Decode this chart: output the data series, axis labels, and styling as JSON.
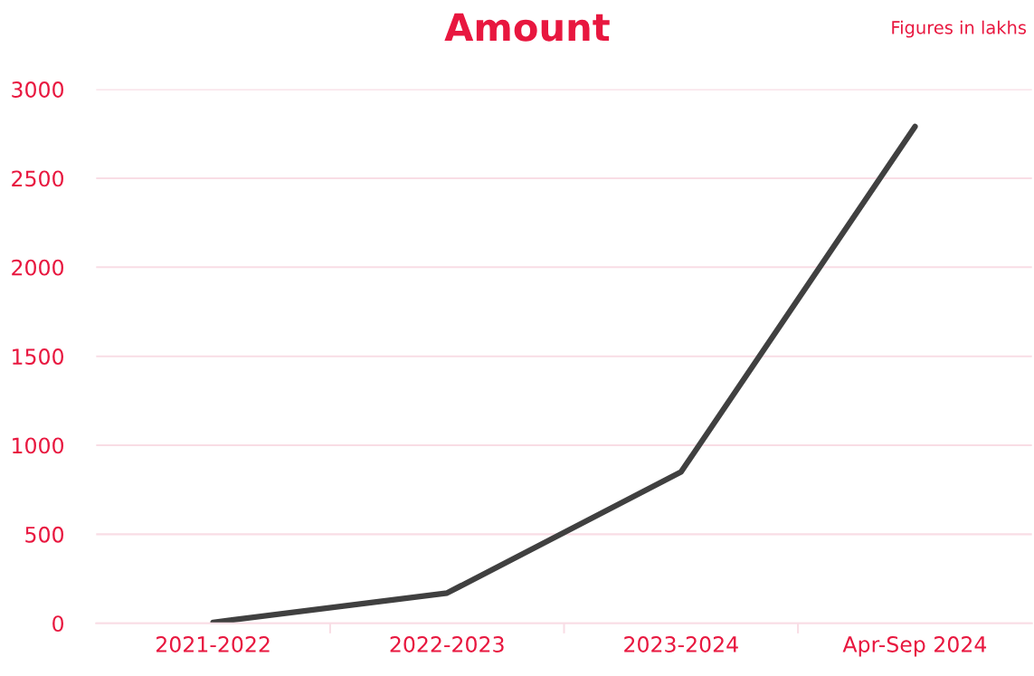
{
  "chart_data": {
    "type": "line",
    "title": "Amount",
    "annotations": [
      "Figures in lakhs"
    ],
    "categories": [
      "2021-2022",
      "2022-2023",
      "2023-2024",
      "Apr-Sep 2024"
    ],
    "series": [
      {
        "color": "#404040",
        "values": [
          5,
          170,
          850,
          2790
        ]
      }
    ],
    "ylim": [
      0,
      3000
    ],
    "yticks": [
      0,
      500,
      1000,
      1500,
      2000,
      2500,
      3000
    ],
    "grid": "y",
    "legend": false,
    "marker": "none",
    "line_style": "solid"
  }
}
